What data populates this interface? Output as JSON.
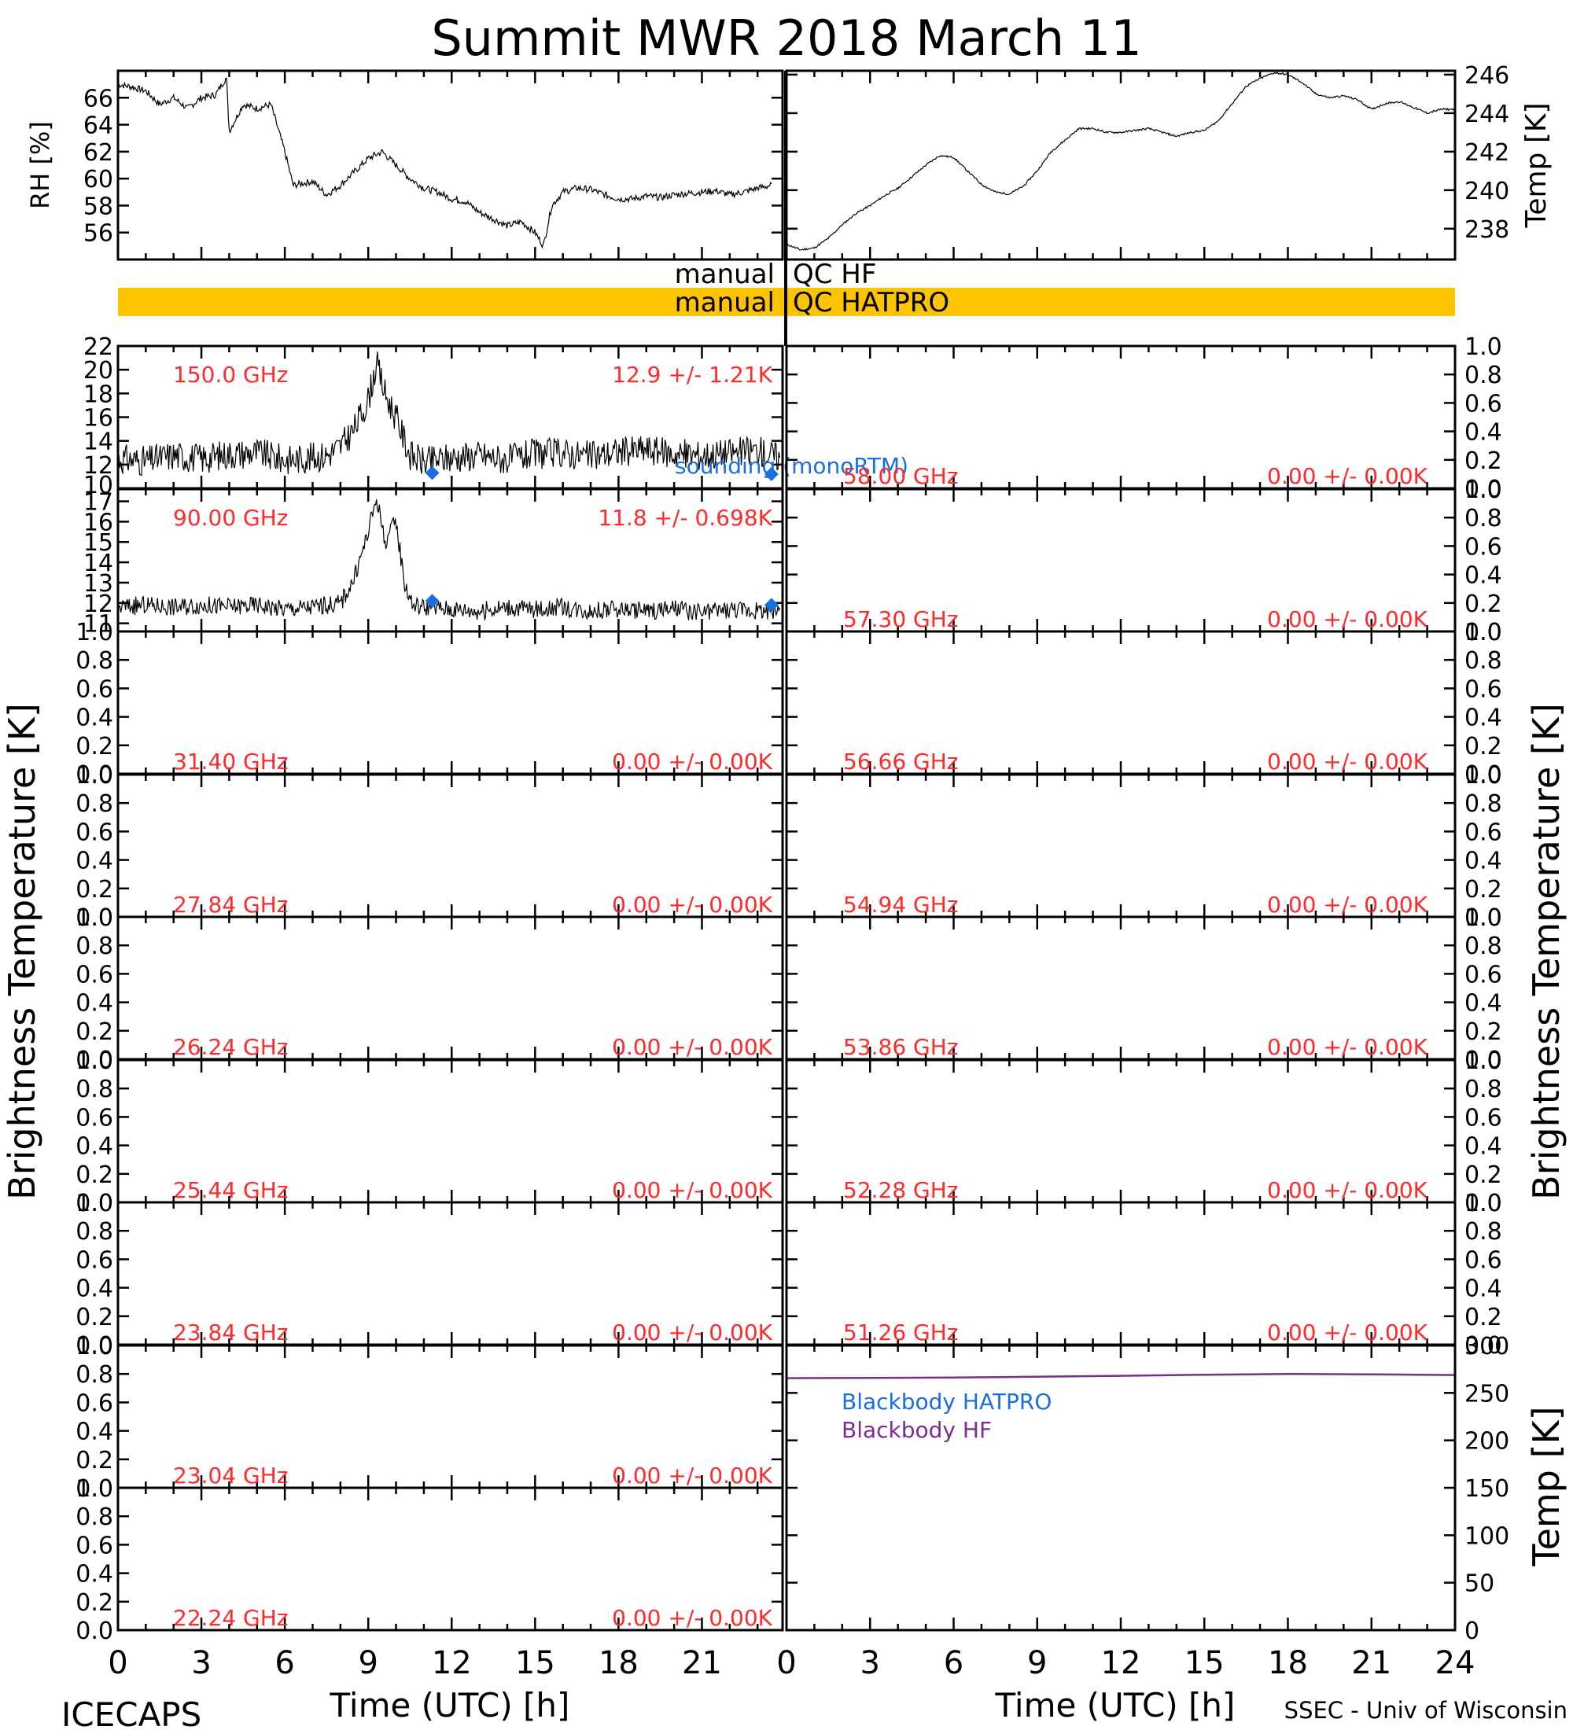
{
  "title": "Summit MWR 2018 March 11",
  "footer": {
    "left": "ICECAPS",
    "right": "SSEC - Univ of Wisconsin"
  },
  "xlabel": "Time (UTC) [h]",
  "x_ticks": [
    "0",
    "3",
    "6",
    "9",
    "12",
    "15",
    "18",
    "21",
    "24"
  ],
  "left_x_ticks": [
    "0",
    "3",
    "6",
    "9",
    "12",
    "15",
    "18",
    "21"
  ],
  "qc": {
    "hf": {
      "left": "manual",
      "right": "QC HF"
    },
    "hatpro": {
      "left": "manual",
      "right": "QC HATPRO"
    },
    "colors": {
      "bar": "#ffc400"
    }
  },
  "brightness_label": "Brightness Temperature [K]",
  "colors": {
    "stats": "#ff2a2a",
    "sounding": "#1a6fe0",
    "trace": "#000000",
    "bb_hf": "#7b2c8f",
    "bb_hatpro": "#1a6fe0"
  },
  "chart_data": [
    {
      "id": "rh",
      "type": "line",
      "ylabel": "RH [%]",
      "ylim": [
        54,
        68
      ],
      "yticks": [
        "56",
        "58",
        "60",
        "62",
        "64",
        "66"
      ],
      "x": [
        0,
        0.5,
        1,
        1.5,
        2,
        2.5,
        3,
        3.5,
        3.9,
        4.0,
        4.5,
        5,
        5.5,
        6,
        6.3,
        7,
        7.5,
        8,
        8.5,
        9,
        9.5,
        10,
        10.5,
        11,
        11.5,
        12,
        12.5,
        13,
        13.5,
        14,
        14.5,
        15,
        15.3,
        15.6,
        16,
        16.5,
        17,
        17.5,
        18,
        18.5,
        19,
        19.5,
        20,
        20.5,
        21,
        21.5,
        22,
        22.5,
        23,
        23.5
      ],
      "y": [
        67,
        66.8,
        66.5,
        65.5,
        66,
        65.2,
        66,
        66.2,
        67.5,
        63.5,
        65.5,
        65.2,
        65.5,
        62,
        59.5,
        59.8,
        58.8,
        59.5,
        60.5,
        61.5,
        62,
        61,
        60,
        59.3,
        59,
        58.5,
        58.3,
        57.5,
        57,
        56.5,
        56.8,
        56,
        55,
        58,
        59,
        59.3,
        59.2,
        58.8,
        58.5,
        58.5,
        58.7,
        58.6,
        58.8,
        58.9,
        59,
        59.1,
        58.8,
        59,
        59.3,
        59.5
      ]
    },
    {
      "id": "temp",
      "type": "line",
      "ylabel": "Temp [K]",
      "ylim": [
        236.4,
        246.2
      ],
      "yticks": [
        "238",
        "240",
        "242",
        "244",
        "246"
      ],
      "x": [
        0,
        0.5,
        1,
        1.5,
        2,
        2.5,
        3,
        3.5,
        4,
        4.5,
        5,
        5.5,
        6,
        6.5,
        7,
        7.5,
        8,
        8.5,
        9,
        9.5,
        10,
        10.5,
        11,
        11.5,
        12,
        12.5,
        13,
        13.5,
        14,
        14.5,
        15,
        15.5,
        16,
        16.5,
        17,
        17.5,
        18,
        18.5,
        19,
        19.5,
        20,
        20.5,
        21,
        21.5,
        22,
        22.5,
        23,
        23.5,
        24
      ],
      "y": [
        237.2,
        236.9,
        237.0,
        237.5,
        238.2,
        238.8,
        239.2,
        239.7,
        240.1,
        240.7,
        241.3,
        241.8,
        241.7,
        241.0,
        240.3,
        239.9,
        239.8,
        240.2,
        241.0,
        242.0,
        242.6,
        243.2,
        243.2,
        243.0,
        243.0,
        243.1,
        243.2,
        243.0,
        242.8,
        243.0,
        243.1,
        243.6,
        244.5,
        245.4,
        245.8,
        246.1,
        246.0,
        245.6,
        245.0,
        244.8,
        244.9,
        244.7,
        244.2,
        244.5,
        244.6,
        244.3,
        244.0,
        244.2,
        244.2
      ]
    },
    {
      "id": "tb150",
      "type": "line",
      "side": "left",
      "freq": "150.0 GHz",
      "stats": "12.9 +/-  1.21K",
      "ylim": [
        10,
        22
      ],
      "yticks": [
        "12",
        "14",
        "16",
        "18",
        "20",
        "22"
      ],
      "extra_tick_labels": [
        "10"
      ],
      "x": [
        0,
        1,
        2,
        3,
        4,
        5,
        6,
        7,
        7.5,
        8,
        8.5,
        9,
        9.3,
        9.6,
        10,
        10.5,
        11,
        12,
        13,
        14,
        15,
        16,
        17,
        18,
        19,
        20,
        21,
        22,
        23,
        23.8
      ],
      "y": [
        12.5,
        12.3,
        12.8,
        12.5,
        12.9,
        13.0,
        12.4,
        12.6,
        12.8,
        13.5,
        15,
        17.5,
        20.5,
        18,
        16,
        12.8,
        12.2,
        12.6,
        12.8,
        12.4,
        12.9,
        13.0,
        12.7,
        13.1,
        13.3,
        12.9,
        12.8,
        13.0,
        13.2,
        12.6
      ],
      "noise": 1.3,
      "sounding_label": "sounding (monoRTM)",
      "sounding": {
        "x": [
          11.3,
          23.5
        ],
        "y": [
          11.3,
          11.2
        ]
      }
    },
    {
      "id": "tb90",
      "type": "line",
      "side": "left",
      "freq": "90.00 GHz",
      "stats": "11.8 +/- 0.698K",
      "ylim": [
        10.6,
        17.6
      ],
      "yticks": [
        "11",
        "12",
        "13",
        "14",
        "15",
        "16",
        "17"
      ],
      "x": [
        0,
        1,
        2,
        3,
        4,
        5,
        6,
        7,
        8,
        8.5,
        9,
        9.3,
        9.6,
        10,
        10.3,
        10.6,
        11,
        12,
        13,
        14,
        15,
        16,
        17,
        18,
        19,
        20,
        21,
        22,
        23,
        23.8
      ],
      "y": [
        11.8,
        11.9,
        11.8,
        11.9,
        11.8,
        11.9,
        11.7,
        11.8,
        12.0,
        13.2,
        15.5,
        17.2,
        15.0,
        16.0,
        13.0,
        11.9,
        11.8,
        11.7,
        11.6,
        11.8,
        11.7,
        11.8,
        11.6,
        11.7,
        11.6,
        11.7,
        11.5,
        11.7,
        11.6,
        11.7
      ],
      "noise": 0.45,
      "sounding": {
        "x": [
          11.3,
          23.5
        ],
        "y": [
          12.1,
          11.9
        ]
      }
    },
    {
      "id": "tb3140",
      "type": "line",
      "side": "left",
      "freq": "31.40 GHz",
      "stats": "0.00 +/-  0.00K",
      "ylim": [
        0,
        1
      ],
      "yticks": [
        "0.0",
        "0.2",
        "0.4",
        "0.6",
        "0.8",
        "1.0"
      ]
    },
    {
      "id": "tb2784",
      "type": "line",
      "side": "left",
      "freq": "27.84 GHz",
      "stats": "0.00 +/-  0.00K",
      "ylim": [
        0,
        1
      ],
      "yticks": [
        "0.0",
        "0.2",
        "0.4",
        "0.6",
        "0.8",
        "1.0"
      ]
    },
    {
      "id": "tb2624",
      "type": "line",
      "side": "left",
      "freq": "26.24 GHz",
      "stats": "0.00 +/-  0.00K",
      "ylim": [
        0,
        1
      ],
      "yticks": [
        "0.0",
        "0.2",
        "0.4",
        "0.6",
        "0.8",
        "1.0"
      ]
    },
    {
      "id": "tb2544",
      "type": "line",
      "side": "left",
      "freq": "25.44 GHz",
      "stats": "0.00 +/-  0.00K",
      "ylim": [
        0,
        1
      ],
      "yticks": [
        "0.0",
        "0.2",
        "0.4",
        "0.6",
        "0.8",
        "1.0"
      ]
    },
    {
      "id": "tb2384",
      "type": "line",
      "side": "left",
      "freq": "23.84 GHz",
      "stats": "0.00 +/-  0.00K",
      "ylim": [
        0,
        1
      ],
      "yticks": [
        "0.0",
        "0.2",
        "0.4",
        "0.6",
        "0.8",
        "1.0"
      ]
    },
    {
      "id": "tb2304",
      "type": "line",
      "side": "left",
      "freq": "23.04 GHz",
      "stats": "0.00 +/-  0.00K",
      "ylim": [
        0,
        1
      ],
      "yticks": [
        "0.0",
        "0.2",
        "0.4",
        "0.6",
        "0.8",
        "1.0"
      ]
    },
    {
      "id": "tb2224",
      "type": "line",
      "side": "left",
      "freq": "22.24 GHz",
      "stats": "0.00 +/-  0.00K",
      "ylim": [
        0,
        1
      ],
      "yticks": [
        "0.0",
        "0.2",
        "0.4",
        "0.6",
        "0.8",
        "1.0"
      ]
    },
    {
      "id": "tb5800",
      "type": "line",
      "side": "right",
      "freq": "58.00 GHz",
      "stats": "0.00 +/-  0.00K",
      "ylim": [
        0,
        1
      ],
      "yticks": [
        "0.0",
        "0.2",
        "0.4",
        "0.6",
        "0.8",
        "1.0"
      ]
    },
    {
      "id": "tb5730",
      "type": "line",
      "side": "right",
      "freq": "57.30 GHz",
      "stats": "0.00 +/-  0.00K",
      "ylim": [
        0,
        1
      ],
      "yticks": [
        "0.0",
        "0.2",
        "0.4",
        "0.6",
        "0.8",
        "1.0"
      ]
    },
    {
      "id": "tb5666",
      "type": "line",
      "side": "right",
      "freq": "56.66 GHz",
      "stats": "0.00 +/-  0.00K",
      "ylim": [
        0,
        1
      ],
      "yticks": [
        "0.0",
        "0.2",
        "0.4",
        "0.6",
        "0.8",
        "1.0"
      ]
    },
    {
      "id": "tb5494",
      "type": "line",
      "side": "right",
      "freq": "54.94 GHz",
      "stats": "0.00 +/-  0.00K",
      "ylim": [
        0,
        1
      ],
      "yticks": [
        "0.0",
        "0.2",
        "0.4",
        "0.6",
        "0.8",
        "1.0"
      ]
    },
    {
      "id": "tb5386",
      "type": "line",
      "side": "right",
      "freq": "53.86 GHz",
      "stats": "0.00 +/-  0.00K",
      "ylim": [
        0,
        1
      ],
      "yticks": [
        "0.0",
        "0.2",
        "0.4",
        "0.6",
        "0.8",
        "1.0"
      ]
    },
    {
      "id": "tb5228",
      "type": "line",
      "side": "right",
      "freq": "52.28 GHz",
      "stats": "0.00 +/-  0.00K",
      "ylim": [
        0,
        1
      ],
      "yticks": [
        "0.0",
        "0.2",
        "0.4",
        "0.6",
        "0.8",
        "1.0"
      ]
    },
    {
      "id": "tb5126",
      "type": "line",
      "side": "right",
      "freq": "51.26 GHz",
      "stats": "0.00 +/-  0.00K",
      "ylim": [
        0,
        1
      ],
      "yticks": [
        "0.0",
        "0.2",
        "0.4",
        "0.6",
        "0.8",
        "1.0"
      ]
    },
    {
      "id": "blackbody",
      "type": "line",
      "ylabel": "Temp [K]",
      "ylim": [
        0,
        300
      ],
      "yticks": [
        "0",
        "50",
        "100",
        "150",
        "200",
        "250",
        "300"
      ],
      "legend": [
        "Blackbody HATPRO",
        "Blackbody HF"
      ],
      "series": [
        {
          "name": "Blackbody HF",
          "x": [
            0,
            3,
            6,
            9,
            12,
            15,
            18,
            21,
            24
          ],
          "y": [
            265.5,
            265.8,
            266.3,
            267.0,
            268.0,
            269.2,
            270.0,
            269.6,
            268.8
          ]
        },
        {
          "name": "Blackbody HATPRO",
          "x": [
            0,
            24
          ],
          "y": [
            0,
            0
          ]
        }
      ]
    }
  ]
}
